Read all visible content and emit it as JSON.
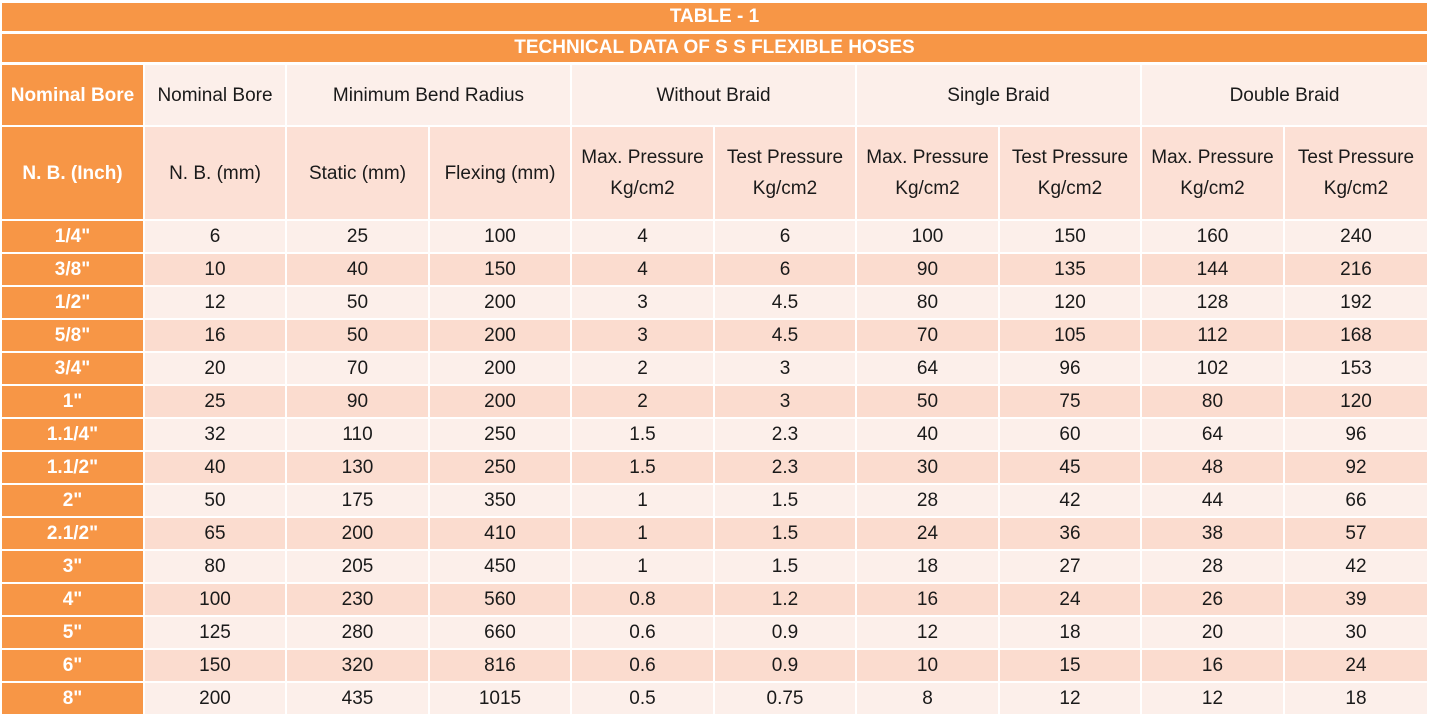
{
  "table": {
    "title": "TABLE - 1",
    "subtitle": "TECHNICAL DATA OF S S FLEXIBLE HOSES",
    "header1": {
      "nb_inch": "Nominal Bore",
      "nb_mm": "Nominal Bore",
      "bend_radius": "Minimum Bend Radius",
      "without_braid": "Without Braid",
      "single_braid": "Single Braid",
      "double_braid": "Double Braid"
    },
    "header2": {
      "nb_inch": "N. B. (Inch)",
      "nb_mm": "N. B. (mm)",
      "static": "Static (mm)",
      "flexing": "Flexing (mm)",
      "wb_max": "Max. Pressure Kg/cm2",
      "wb_test": "Test Pressure Kg/cm2",
      "sb_max": "Max. Pressure Kg/cm2",
      "sb_test": "Test Pressure Kg/cm2",
      "db_max": "Max. Pressure Kg/cm2",
      "db_test": "Test Pressure Kg/cm2"
    },
    "rows": [
      [
        "1/4\"",
        "6",
        "25",
        "100",
        "4",
        "6",
        "100",
        "150",
        "160",
        "240"
      ],
      [
        "3/8\"",
        "10",
        "40",
        "150",
        "4",
        "6",
        "90",
        "135",
        "144",
        "216"
      ],
      [
        "1/2\"",
        "12",
        "50",
        "200",
        "3",
        "4.5",
        "80",
        "120",
        "128",
        "192"
      ],
      [
        "5/8\"",
        "16",
        "50",
        "200",
        "3",
        "4.5",
        "70",
        "105",
        "112",
        "168"
      ],
      [
        "3/4\"",
        "20",
        "70",
        "200",
        "2",
        "3",
        "64",
        "96",
        "102",
        "153"
      ],
      [
        "1\"",
        "25",
        "90",
        "200",
        "2",
        "3",
        "50",
        "75",
        "80",
        "120"
      ],
      [
        "1.1/4\"",
        "32",
        "110",
        "250",
        "1.5",
        "2.3",
        "40",
        "60",
        "64",
        "96"
      ],
      [
        "1.1/2\"",
        "40",
        "130",
        "250",
        "1.5",
        "2.3",
        "30",
        "45",
        "48",
        "92"
      ],
      [
        "2\"",
        "50",
        "175",
        "350",
        "1",
        "1.5",
        "28",
        "42",
        "44",
        "66"
      ],
      [
        "2.1/2\"",
        "65",
        "200",
        "410",
        "1",
        "1.5",
        "24",
        "36",
        "38",
        "57"
      ],
      [
        "3\"",
        "80",
        "205",
        "450",
        "1",
        "1.5",
        "18",
        "27",
        "28",
        "42"
      ],
      [
        "4\"",
        "100",
        "230",
        "560",
        "0.8",
        "1.2",
        "16",
        "24",
        "26",
        "39"
      ],
      [
        "5\"",
        "125",
        "280",
        "660",
        "0.6",
        "0.9",
        "12",
        "18",
        "20",
        "30"
      ],
      [
        "6\"",
        "150",
        "320",
        "816",
        "0.6",
        "0.9",
        "10",
        "15",
        "16",
        "24"
      ],
      [
        "8\"",
        "200",
        "435",
        "1015",
        "0.5",
        "0.75",
        "8",
        "12",
        "12",
        "18"
      ]
    ]
  },
  "colors": {
    "accent": "#f79646",
    "row_light": "#fcefea",
    "row_dark": "#fbdccf",
    "text": "#1a1a1a"
  }
}
